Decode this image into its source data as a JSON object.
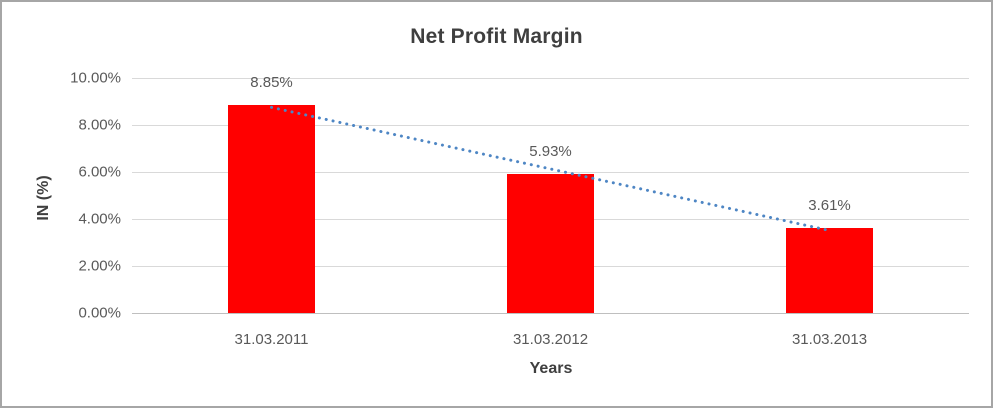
{
  "chart_data": {
    "type": "bar",
    "title": "Net Profit Margin",
    "xlabel": "Years",
    "ylabel": "IN (%)",
    "categories": [
      "31.03.2011",
      "31.03.2012",
      "31.03.2013"
    ],
    "series": [
      {
        "name": "Net Profit Margin",
        "values": [
          8.85,
          5.93,
          3.61
        ]
      }
    ],
    "data_labels": [
      "8.85%",
      "5.93%",
      "3.61%"
    ],
    "ylim": [
      0,
      10
    ],
    "yticks": [
      0,
      2,
      4,
      6,
      8,
      10
    ],
    "ytick_labels": [
      "0.00%",
      "2.00%",
      "4.00%",
      "6.00%",
      "8.00%",
      "10.00%"
    ],
    "grid": true,
    "legend_position": "none",
    "trendline": {
      "type": "linear",
      "style": "dotted"
    }
  },
  "style": {
    "background": "#ffffff",
    "frame_border_color": "#a6a6a6",
    "bar_color": "#ff0000",
    "trendline_color": "#4e86c4",
    "gridline_color": "#d9d9d9",
    "axis_line_color": "#bfbfbf",
    "title_color": "#3f3f3f",
    "axis_title_color": "#3f3f3f",
    "tick_label_color": "#595959",
    "data_label_color": "#595959"
  }
}
